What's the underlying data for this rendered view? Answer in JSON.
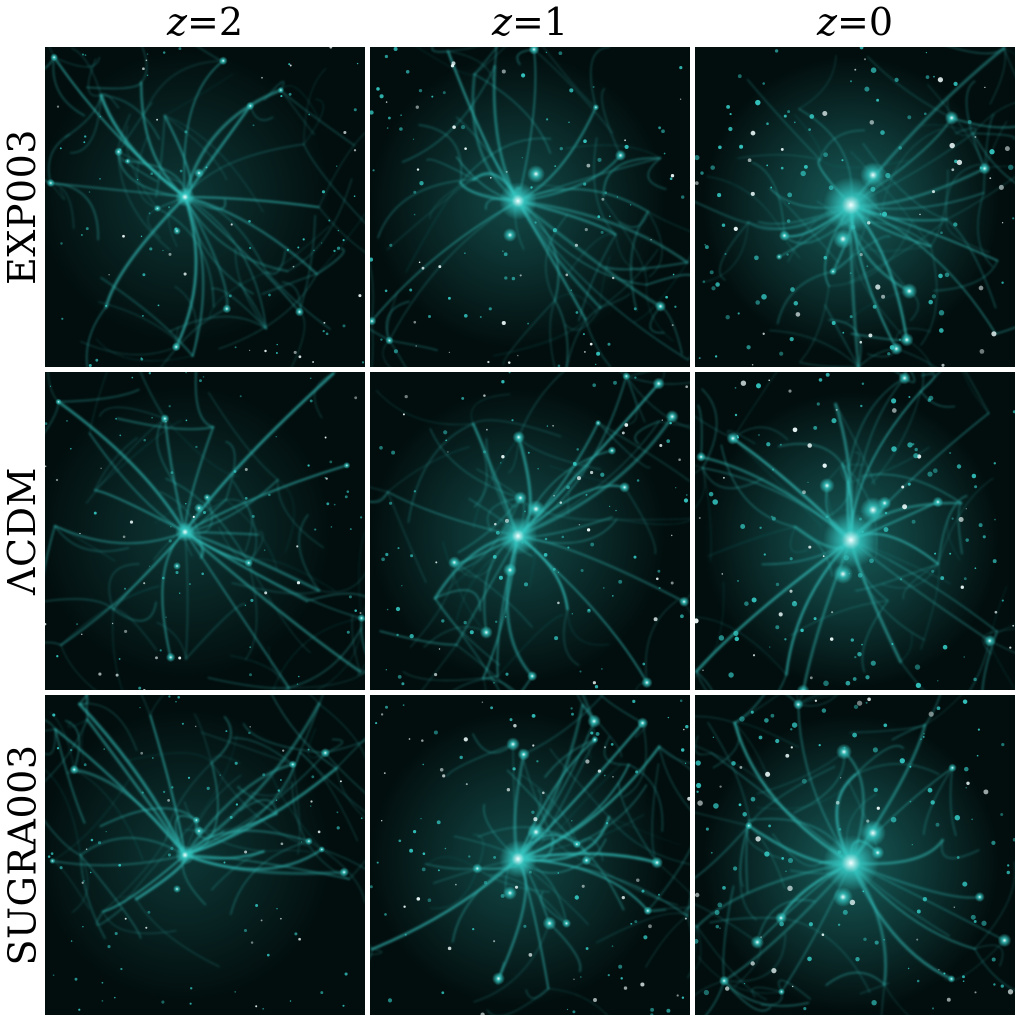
{
  "columns": [
    {
      "var": "z",
      "eq": " = ",
      "value": "2"
    },
    {
      "var": "z",
      "eq": " = ",
      "value": "1"
    },
    {
      "var": "z",
      "eq": " = ",
      "value": "0"
    }
  ],
  "rows": [
    "EXP003",
    "ΛCDM",
    "SUGRA003"
  ],
  "colors": {
    "filament": "#35c9c4",
    "halo_core": "#f2ffff",
    "background": "#020d0d"
  }
}
